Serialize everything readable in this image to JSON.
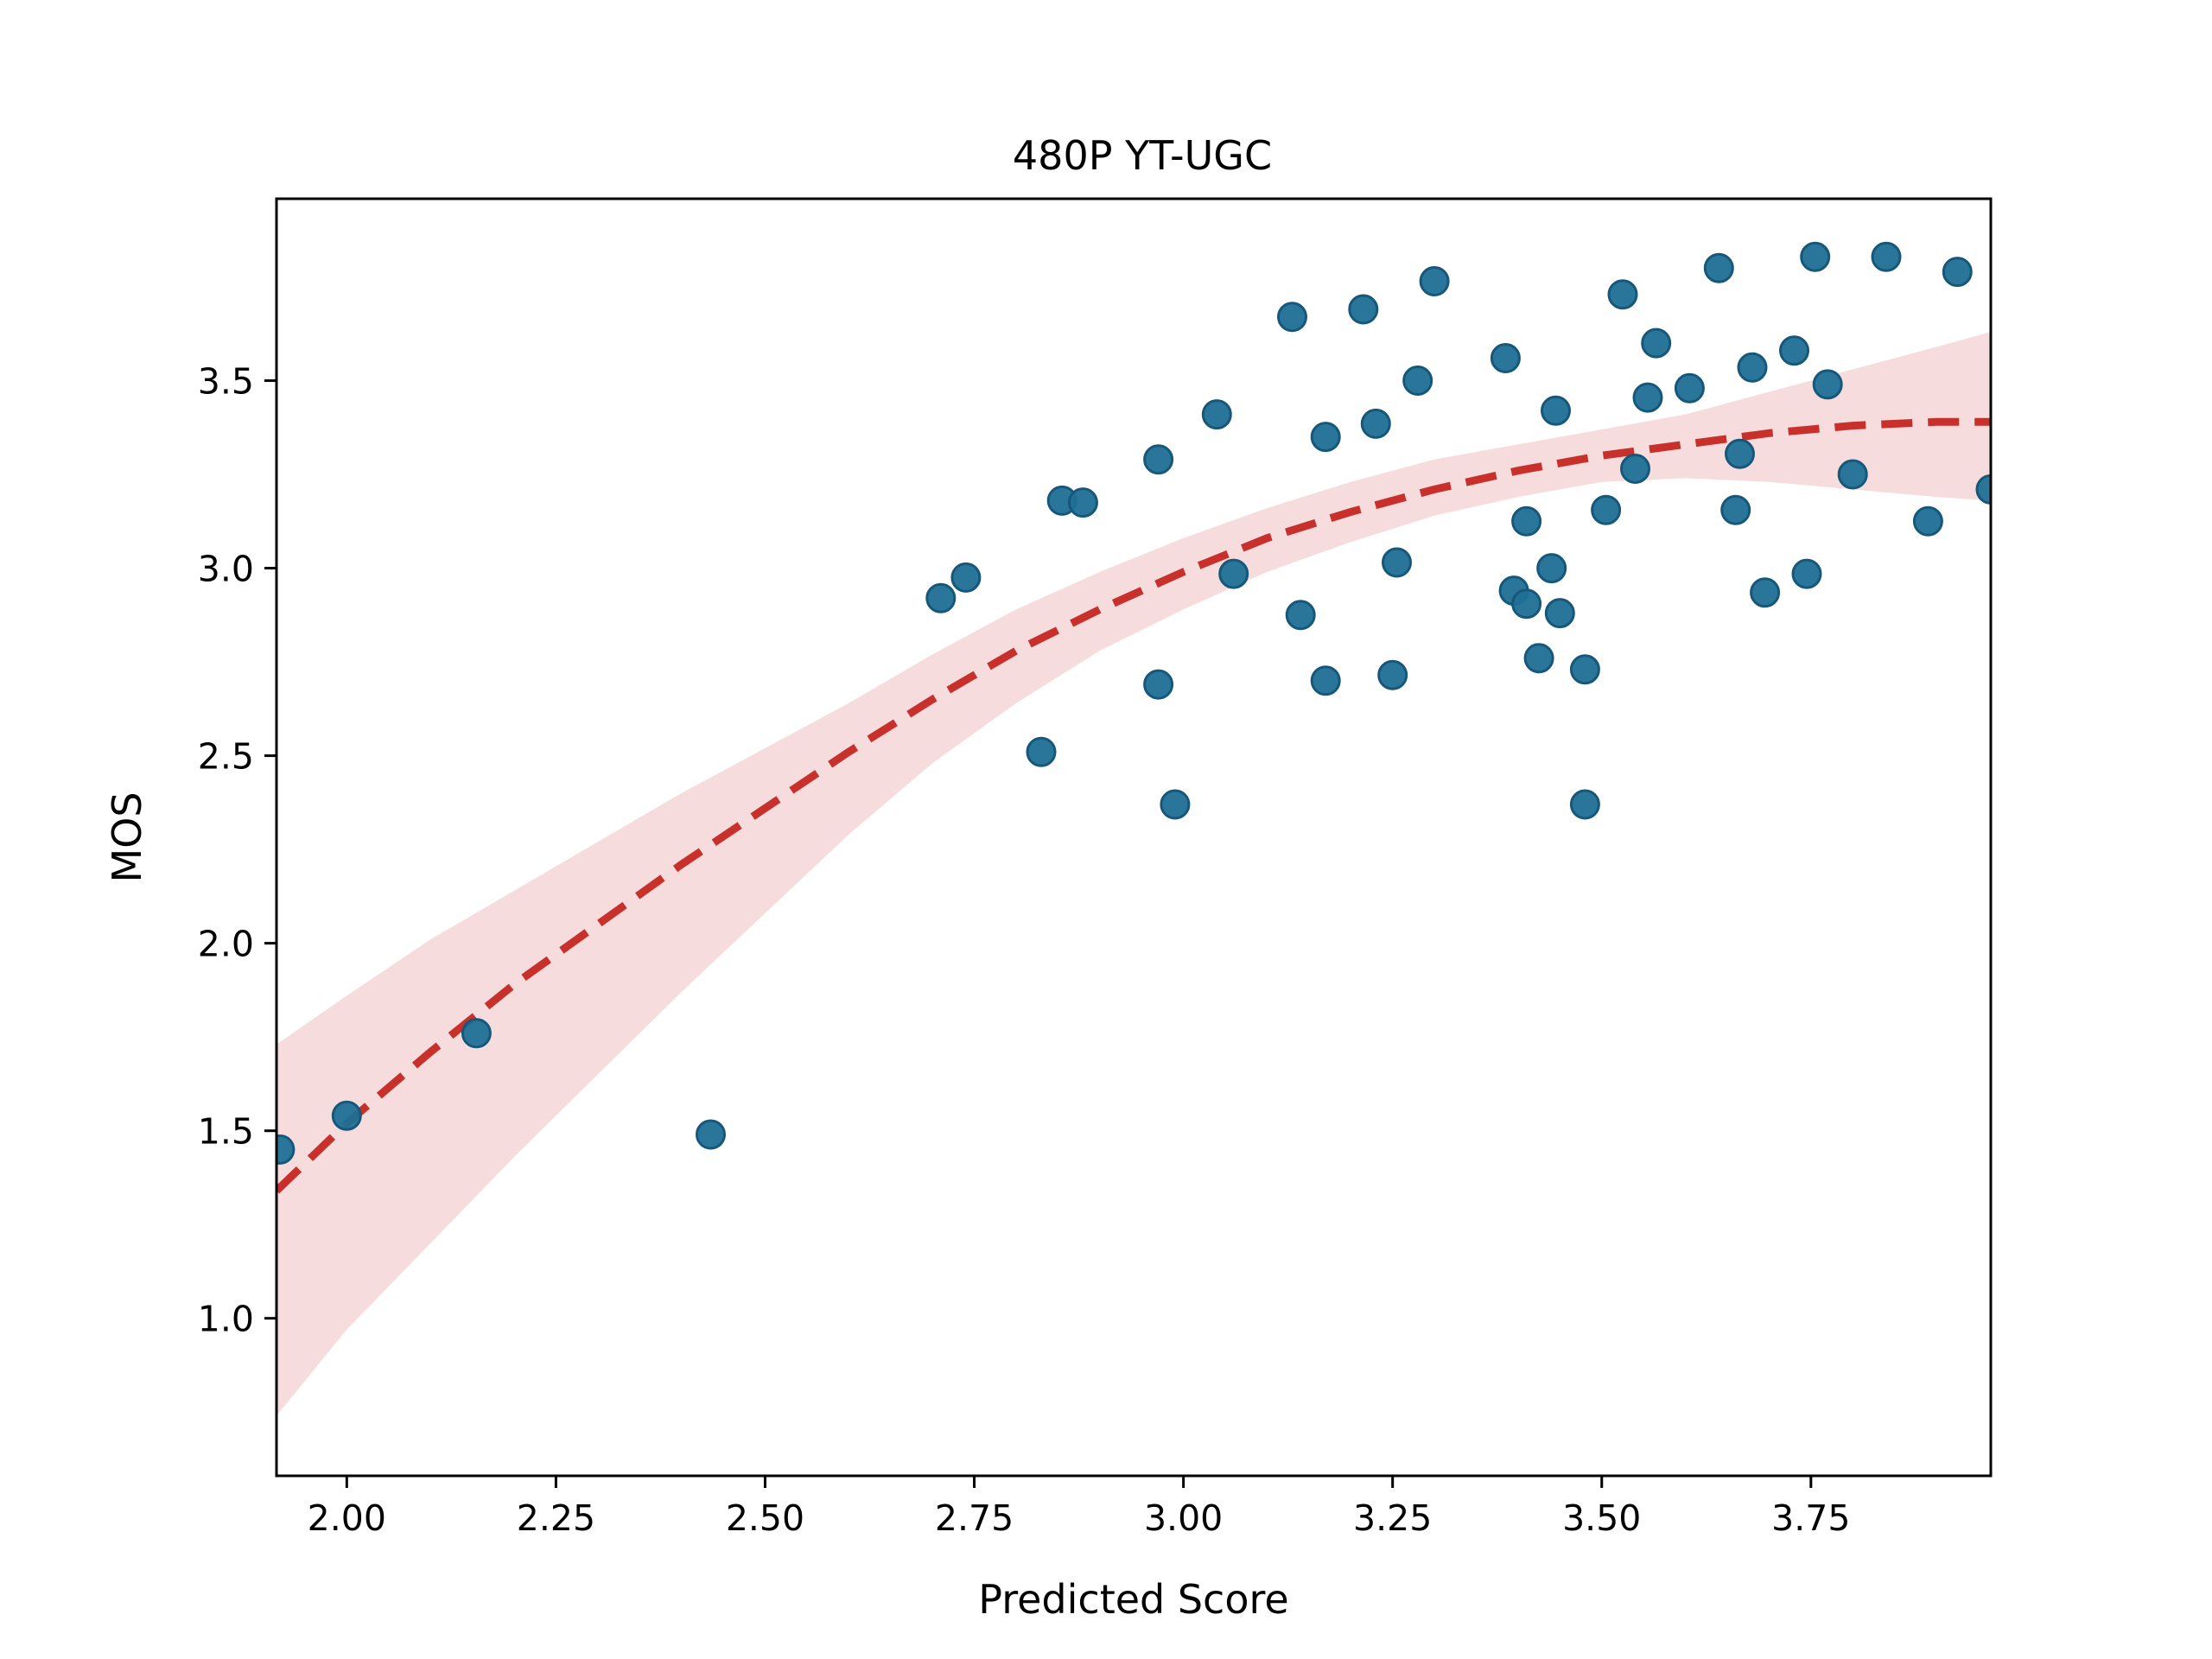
{
  "chart_data": {
    "type": "scatter",
    "title": "480P YT-UGC",
    "xlabel": "Predicted Score",
    "ylabel": "MOS",
    "xlim": [
      1.916,
      3.965
    ],
    "ylim": [
      0.58,
      3.985
    ],
    "xticks": [
      2.0,
      2.25,
      2.5,
      2.75,
      3.0,
      3.25,
      3.5,
      3.75
    ],
    "xtick_labels": [
      "2.00",
      "2.25",
      "2.50",
      "2.75",
      "3.00",
      "3.25",
      "3.50",
      "3.75"
    ],
    "yticks": [
      1.0,
      1.5,
      2.0,
      2.5,
      3.0,
      3.5
    ],
    "ytick_labels": [
      "1.0",
      "1.5",
      "2.0",
      "2.5",
      "3.0",
      "3.5"
    ],
    "grid": false,
    "colors": {
      "points": "#1f6f96",
      "points_edge": "#16577a",
      "fit_line": "#c8302c",
      "band": "#f6dcdc"
    },
    "points": [
      {
        "x": 1.92,
        "y": 1.45
      },
      {
        "x": 2.0,
        "y": 1.54
      },
      {
        "x": 2.155,
        "y": 1.76
      },
      {
        "x": 2.435,
        "y": 1.49
      },
      {
        "x": 2.71,
        "y": 2.92
      },
      {
        "x": 2.74,
        "y": 2.975
      },
      {
        "x": 2.83,
        "y": 2.51
      },
      {
        "x": 2.855,
        "y": 3.18
      },
      {
        "x": 2.88,
        "y": 3.175
      },
      {
        "x": 2.97,
        "y": 3.29
      },
      {
        "x": 2.97,
        "y": 2.69
      },
      {
        "x": 2.99,
        "y": 2.37
      },
      {
        "x": 3.04,
        "y": 3.41
      },
      {
        "x": 3.06,
        "y": 2.985
      },
      {
        "x": 3.13,
        "y": 3.67
      },
      {
        "x": 3.14,
        "y": 2.875
      },
      {
        "x": 3.17,
        "y": 3.35
      },
      {
        "x": 3.17,
        "y": 2.7
      },
      {
        "x": 3.215,
        "y": 3.69
      },
      {
        "x": 3.23,
        "y": 3.385
      },
      {
        "x": 3.25,
        "y": 2.715
      },
      {
        "x": 3.255,
        "y": 3.015
      },
      {
        "x": 3.28,
        "y": 3.5
      },
      {
        "x": 3.3,
        "y": 3.765
      },
      {
        "x": 3.385,
        "y": 3.56
      },
      {
        "x": 3.395,
        "y": 2.94
      },
      {
        "x": 3.41,
        "y": 3.125
      },
      {
        "x": 3.41,
        "y": 2.905
      },
      {
        "x": 3.425,
        "y": 2.76
      },
      {
        "x": 3.44,
        "y": 3.0
      },
      {
        "x": 3.445,
        "y": 3.42
      },
      {
        "x": 3.45,
        "y": 2.88
      },
      {
        "x": 3.48,
        "y": 2.73
      },
      {
        "x": 3.48,
        "y": 2.37
      },
      {
        "x": 3.505,
        "y": 3.155
      },
      {
        "x": 3.525,
        "y": 3.73
      },
      {
        "x": 3.54,
        "y": 3.265
      },
      {
        "x": 3.555,
        "y": 3.455
      },
      {
        "x": 3.565,
        "y": 3.6
      },
      {
        "x": 3.605,
        "y": 3.48
      },
      {
        "x": 3.64,
        "y": 3.8
      },
      {
        "x": 3.66,
        "y": 3.155
      },
      {
        "x": 3.665,
        "y": 3.305
      },
      {
        "x": 3.68,
        "y": 3.535
      },
      {
        "x": 3.695,
        "y": 2.935
      },
      {
        "x": 3.73,
        "y": 3.58
      },
      {
        "x": 3.745,
        "y": 2.985
      },
      {
        "x": 3.755,
        "y": 3.83
      },
      {
        "x": 3.77,
        "y": 3.49
      },
      {
        "x": 3.8,
        "y": 3.25
      },
      {
        "x": 3.84,
        "y": 3.83
      },
      {
        "x": 3.89,
        "y": 3.125
      },
      {
        "x": 3.925,
        "y": 3.79
      },
      {
        "x": 3.965,
        "y": 3.21
      }
    ],
    "fit_line": {
      "x": [
        1.916,
        2.0,
        2.1,
        2.2,
        2.3,
        2.4,
        2.5,
        2.6,
        2.7,
        2.8,
        2.9,
        3.0,
        3.1,
        3.2,
        3.3,
        3.4,
        3.5,
        3.6,
        3.7,
        3.8,
        3.9,
        3.965
      ],
      "y": [
        1.34,
        1.52,
        1.71,
        1.89,
        2.05,
        2.21,
        2.36,
        2.51,
        2.65,
        2.78,
        2.89,
        2.99,
        3.08,
        3.15,
        3.21,
        3.26,
        3.3,
        3.33,
        3.36,
        3.38,
        3.39,
        3.39
      ]
    },
    "confidence_band": {
      "x": [
        1.916,
        2.0,
        2.1,
        2.2,
        2.3,
        2.4,
        2.5,
        2.6,
        2.7,
        2.8,
        2.9,
        3.0,
        3.1,
        3.2,
        3.3,
        3.4,
        3.5,
        3.6,
        3.7,
        3.8,
        3.9,
        3.965
      ],
      "lower": [
        0.74,
        0.97,
        1.2,
        1.43,
        1.65,
        1.87,
        2.08,
        2.29,
        2.48,
        2.64,
        2.78,
        2.89,
        2.99,
        3.07,
        3.14,
        3.19,
        3.23,
        3.24,
        3.23,
        3.21,
        3.19,
        3.18
      ],
      "upper": [
        1.73,
        1.86,
        2.01,
        2.14,
        2.27,
        2.4,
        2.52,
        2.64,
        2.77,
        2.89,
        2.99,
        3.08,
        3.16,
        3.23,
        3.29,
        3.33,
        3.37,
        3.41,
        3.47,
        3.53,
        3.59,
        3.63
      ]
    }
  }
}
